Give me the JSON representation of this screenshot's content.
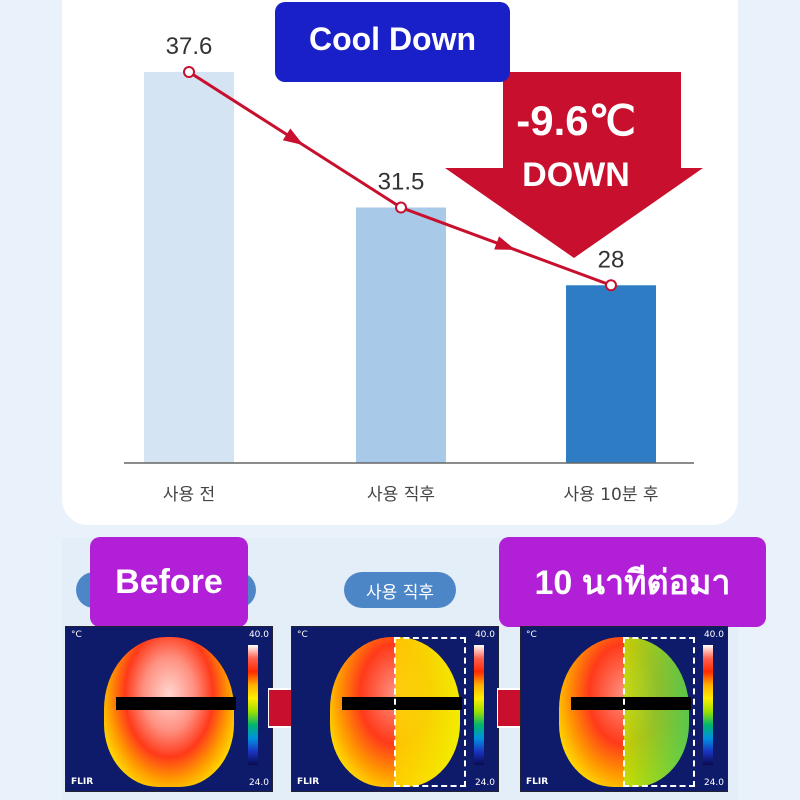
{
  "title": "Cool Down",
  "callout": {
    "value": "-9.6℃",
    "text": "DOWN"
  },
  "chart_data": {
    "type": "bar",
    "categories": [
      "사용 전",
      "사용 직후",
      "사용 10분 후"
    ],
    "values": [
      37.6,
      31.5,
      28
    ],
    "value_labels": [
      "37.6",
      "31.5",
      "28"
    ],
    "ylim": [
      20,
      40
    ],
    "bar_colors": [
      "#d5e4f3",
      "#a9c9e8",
      "#2d7cc4"
    ],
    "line_color": "#c8102e",
    "grid": false,
    "legend": "none"
  },
  "thermal": {
    "tab_label": "사용 직후",
    "before_label": "Before",
    "after_label": "10 นาทีต่อมา",
    "unit": "°C",
    "scale_max": "40.0",
    "scale_min": "24.0",
    "brand": "FLIR"
  }
}
